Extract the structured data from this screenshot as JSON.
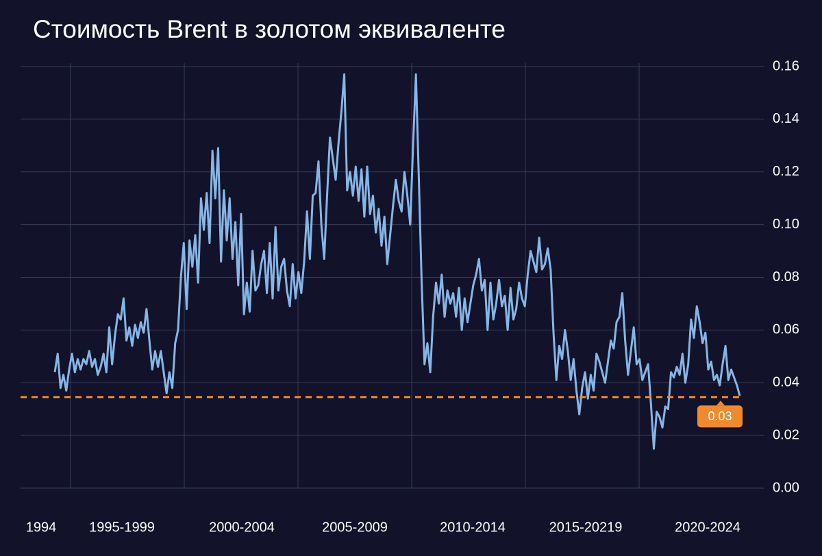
{
  "chart_data": {
    "type": "line",
    "title": "Стоимость Brent в золотом эквиваленте",
    "x_labels": [
      "1994",
      "1995-1999",
      "2000-2004",
      "2005-2009",
      "2010-2014",
      "2015-20219",
      "2020-2024"
    ],
    "series": [
      {
        "color": "#86b6e6",
        "values": [
          0.044,
          0.051,
          0.038,
          0.043,
          0.037,
          0.045,
          0.051,
          0.044,
          0.049,
          0.045,
          0.049,
          0.047,
          0.052,
          0.046,
          0.049,
          0.043,
          0.046,
          0.051,
          0.044,
          0.061,
          0.047,
          0.058,
          0.066,
          0.064,
          0.072,
          0.056,
          0.061,
          0.054,
          0.062,
          0.057,
          0.063,
          0.059,
          0.068,
          0.056,
          0.045,
          0.052,
          0.046,
          0.052,
          0.044,
          0.036,
          0.044,
          0.038,
          0.055,
          0.06,
          0.08,
          0.093,
          0.068,
          0.094,
          0.084,
          0.096,
          0.078,
          0.11,
          0.098,
          0.112,
          0.093,
          0.128,
          0.11,
          0.129,
          0.086,
          0.113,
          0.094,
          0.11,
          0.087,
          0.101,
          0.077,
          0.104,
          0.066,
          0.078,
          0.067,
          0.09,
          0.075,
          0.077,
          0.085,
          0.09,
          0.074,
          0.093,
          0.072,
          0.099,
          0.075,
          0.084,
          0.087,
          0.075,
          0.069,
          0.085,
          0.072,
          0.082,
          0.074,
          0.086,
          0.105,
          0.087,
          0.111,
          0.112,
          0.124,
          0.1,
          0.087,
          0.111,
          0.133,
          0.125,
          0.117,
          0.131,
          0.143,
          0.157,
          0.113,
          0.12,
          0.111,
          0.122,
          0.109,
          0.121,
          0.103,
          0.122,
          0.104,
          0.111,
          0.097,
          0.106,
          0.092,
          0.103,
          0.085,
          0.096,
          0.107,
          0.117,
          0.109,
          0.105,
          0.12,
          0.111,
          0.1,
          0.13,
          0.157,
          0.118,
          0.078,
          0.047,
          0.055,
          0.044,
          0.065,
          0.078,
          0.07,
          0.081,
          0.065,
          0.075,
          0.07,
          0.074,
          0.065,
          0.076,
          0.06,
          0.072,
          0.063,
          0.07,
          0.077,
          0.081,
          0.087,
          0.075,
          0.079,
          0.06,
          0.078,
          0.064,
          0.07,
          0.079,
          0.069,
          0.073,
          0.06,
          0.076,
          0.064,
          0.068,
          0.078,
          0.072,
          0.069,
          0.081,
          0.09,
          0.086,
          0.082,
          0.095,
          0.083,
          0.085,
          0.091,
          0.083,
          0.059,
          0.041,
          0.054,
          0.049,
          0.06,
          0.052,
          0.041,
          0.049,
          0.037,
          0.028,
          0.038,
          0.044,
          0.034,
          0.043,
          0.037,
          0.051,
          0.048,
          0.044,
          0.04,
          0.048,
          0.056,
          0.053,
          0.063,
          0.065,
          0.074,
          0.056,
          0.043,
          0.052,
          0.061,
          0.047,
          0.049,
          0.041,
          0.044,
          0.047,
          0.032,
          0.015,
          0.029,
          0.027,
          0.023,
          0.031,
          0.03,
          0.044,
          0.042,
          0.046,
          0.043,
          0.051,
          0.04,
          0.047,
          0.064,
          0.057,
          0.069,
          0.063,
          0.055,
          0.059,
          0.045,
          0.048,
          0.041,
          0.043,
          0.039,
          0.047,
          0.054,
          0.041,
          0.045,
          0.042,
          0.039,
          0.035
        ]
      }
    ],
    "reference": {
      "value": 0.0345,
      "label": "0.03",
      "color": "#f08a2e"
    },
    "ylim": [
      0,
      0.16
    ],
    "yticks": [
      {
        "value": 0,
        "label": "0.00"
      },
      0.02,
      0.04,
      0.06,
      0.08,
      {
        "value": 0.1,
        "label": "0.10"
      },
      0.12,
      0.14,
      0.16
    ],
    "grid": true
  }
}
